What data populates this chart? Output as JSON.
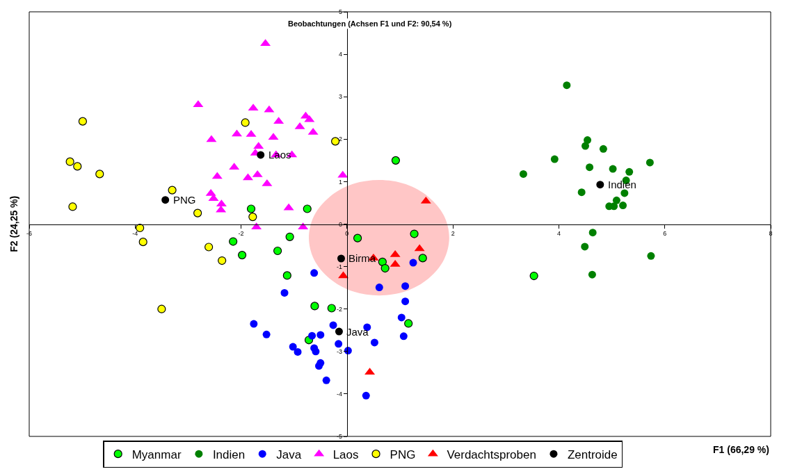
{
  "chart_data": {
    "type": "scatter",
    "title": "Beobachtungen (Achsen F1 und F2: 90,54 %)",
    "xlabel": "F1 (66,29 %)",
    "ylabel": "F2 (24,25 %)",
    "xlim": [
      -6,
      8
    ],
    "ylim": [
      -5,
      5
    ],
    "xticks": [
      -6,
      -4,
      -2,
      0,
      2,
      4,
      6,
      8
    ],
    "yticks": [
      -5,
      -4,
      -3,
      -2,
      -1,
      0,
      1,
      2,
      3,
      4,
      5
    ],
    "grid": false,
    "legend": "bottom",
    "series": [
      {
        "type": "area",
        "color": "#ff8080",
        "x": [
          1.93,
          1.83,
          1.54,
          1.11,
          0.61,
          0.1,
          -0.33,
          -0.62,
          -0.72,
          -0.62,
          -0.33,
          0.1,
          0.61,
          1.11,
          1.54,
          1.83
        ],
        "values": [
          -0.32,
          0.2,
          0.64,
          0.94,
          1.04,
          0.94,
          0.64,
          0.2,
          -0.32,
          -0.84,
          -1.28,
          -1.58,
          -1.68,
          -1.58,
          -1.28,
          -0.84
        ]
      },
      {
        "name": "Myanmar",
        "color": "#00ff00",
        "marker": "circle",
        "x": [
          -1.81,
          -0.75,
          -1.08,
          -2.15,
          -1.98,
          -1.31,
          -1.13,
          -0.61,
          -0.29,
          0.92,
          0.2,
          1.27,
          1.43,
          0.67,
          0.72,
          -0.72,
          1.16,
          3.53
        ],
        "values": [
          0.36,
          0.36,
          -0.3,
          -0.41,
          -0.73,
          -0.63,
          -1.21,
          -1.93,
          -1.98,
          1.5,
          -0.33,
          -0.23,
          -0.8,
          -0.89,
          -1.04,
          -2.73,
          -2.34,
          -1.22
        ]
      },
      {
        "name": "Indien",
        "color": "#008000",
        "marker": "circle",
        "x": [
          4.15,
          4.54,
          4.5,
          4.84,
          3.92,
          5.72,
          3.33,
          4.58,
          5.02,
          5.33,
          5.27,
          5.24,
          4.43,
          5.09,
          4.95,
          5.04,
          5.21,
          4.64,
          4.49,
          5.74,
          4.63
        ],
        "values": [
          3.27,
          1.98,
          1.84,
          1.77,
          1.53,
          1.45,
          1.18,
          1.34,
          1.3,
          1.23,
          1.03,
          0.73,
          0.75,
          0.56,
          0.42,
          0.42,
          0.44,
          -0.2,
          -0.53,
          -0.75,
          -1.19
        ]
      },
      {
        "name": "Java",
        "color": "#0000ff",
        "marker": "circle",
        "x": [
          -0.62,
          -1.18,
          -1.52,
          -0.26,
          0.38,
          -0.66,
          -0.5,
          -1.02,
          -0.93,
          -0.62,
          -0.59,
          -0.16,
          0.02,
          0.52,
          -0.5,
          -0.53,
          -0.39,
          0.36,
          1.1,
          1.03,
          1.07,
          0.61,
          1.1,
          1.25,
          -1.76
        ],
        "values": [
          -1.15,
          -1.62,
          -2.6,
          -2.38,
          -2.43,
          -2.63,
          -2.61,
          -2.89,
          -3.01,
          -2.92,
          -3.0,
          -2.82,
          -2.98,
          -2.79,
          -3.27,
          -3.34,
          -3.68,
          -4.04,
          -1.82,
          -2.2,
          -2.64,
          -1.49,
          -1.46,
          -0.91,
          -2.35
        ]
      },
      {
        "name": "Laos",
        "color": "#ff00ff",
        "marker": "triangle",
        "x": [
          -1.54,
          -2.81,
          -1.77,
          -1.47,
          -1.29,
          -0.78,
          -0.71,
          -0.89,
          -0.64,
          -2.56,
          -2.08,
          -1.81,
          -1.39,
          -1.67,
          -1.73,
          -1.34,
          -1.04,
          -2.13,
          -2.45,
          -1.87,
          -1.69,
          -1.51,
          -2.57,
          -2.52,
          -2.37,
          -2.38,
          -1.1,
          -0.08,
          -1.71,
          -0.83
        ],
        "values": [
          4.25,
          2.81,
          2.73,
          2.69,
          2.42,
          2.54,
          2.46,
          2.29,
          2.16,
          1.99,
          2.12,
          2.11,
          2.04,
          1.83,
          1.67,
          1.63,
          1.63,
          1.34,
          1.12,
          1.09,
          1.16,
          0.95,
          0.72,
          0.6,
          0.47,
          0.33,
          0.38,
          1.15,
          -0.07,
          -0.07
        ]
      },
      {
        "name": "PNG",
        "color": "#ffff00",
        "marker": "circle",
        "x": [
          -4.99,
          -5.23,
          -5.09,
          -4.67,
          -5.18,
          -3.3,
          -2.82,
          -1.92,
          -1.78,
          -0.22,
          -3.91,
          -3.85,
          -2.61,
          -2.36,
          -3.5
        ],
        "values": [
          2.42,
          1.47,
          1.36,
          1.18,
          0.41,
          0.8,
          0.26,
          2.39,
          0.17,
          1.95,
          -0.09,
          -0.42,
          -0.54,
          -0.86,
          -2.0
        ]
      },
      {
        "name": "Verdachtsproben",
        "color": "#ff0000",
        "marker": "triangle",
        "x": [
          1.49,
          1.37,
          0.91,
          0.91,
          0.5,
          -0.07,
          0.43
        ],
        "values": [
          0.54,
          -0.58,
          -0.72,
          -0.95,
          -0.8,
          -1.22,
          -3.49
        ]
      },
      {
        "name": "Zentroide",
        "color": "#000000",
        "marker": "circle",
        "x": [
          -3.43,
          -1.63,
          4.78,
          -0.11,
          -0.15
        ],
        "values": [
          0.57,
          1.63,
          0.93,
          -0.81,
          -2.53
        ]
      }
    ],
    "annotations": [
      {
        "text": "PNG",
        "x": -3.43,
        "y": 0.57
      },
      {
        "text": "Laos",
        "x": -1.63,
        "y": 1.63
      },
      {
        "text": "Indien",
        "x": 4.78,
        "y": 0.93
      },
      {
        "text": "Birma",
        "x": -0.11,
        "y": -0.81
      },
      {
        "text": "Java",
        "x": -0.15,
        "y": -2.53
      }
    ]
  }
}
